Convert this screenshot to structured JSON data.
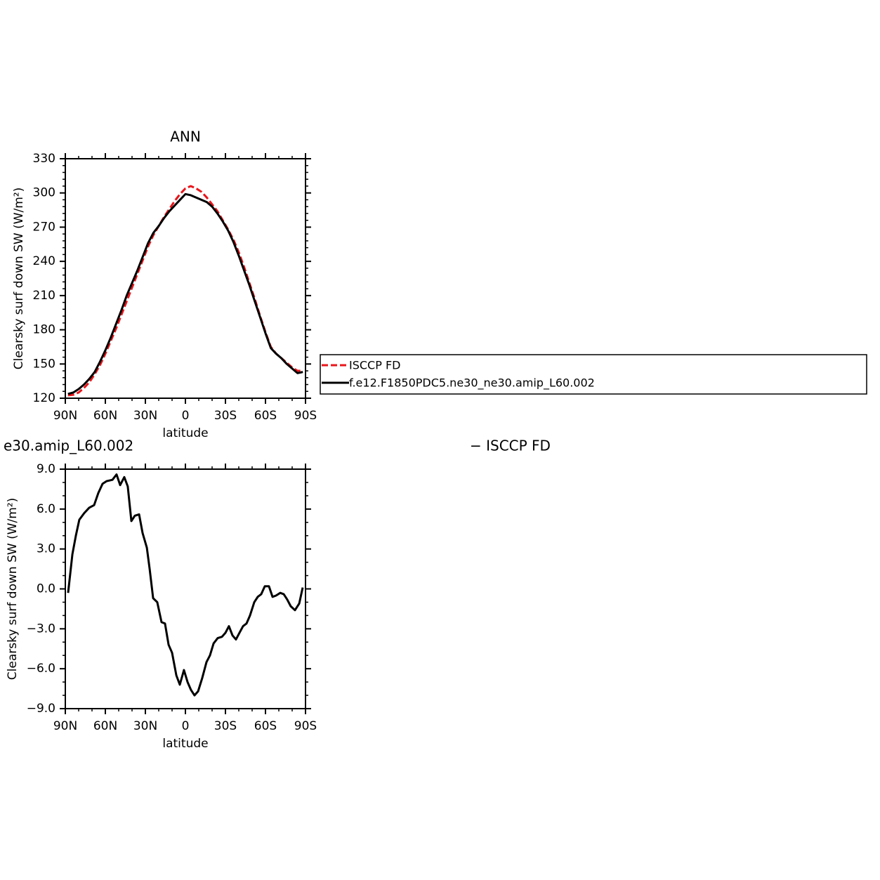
{
  "chart_data": [
    {
      "type": "line",
      "title": "ANN",
      "x_label": "latitude",
      "y_label": "Clearsky surf down SW (W/m²)",
      "x": [
        88,
        84,
        80,
        76,
        72,
        68,
        64,
        60,
        56,
        52,
        48,
        44,
        40,
        36,
        32,
        28,
        24,
        20,
        16,
        12,
        8,
        4,
        0,
        -4,
        -8,
        -12,
        -16,
        -20,
        -24,
        -28,
        -32,
        -36,
        -40,
        -44,
        -48,
        -52,
        -56,
        -60,
        -64,
        -68,
        -72,
        -76,
        -80,
        -84,
        -88
      ],
      "series": [
        {
          "name": "ISCCP FD",
          "color": "#e8161b",
          "dashed": true,
          "values": [
            122.5,
            123,
            125,
            129,
            134,
            141,
            149,
            159,
            170,
            181,
            193,
            205,
            217,
            229,
            241,
            253,
            263,
            271,
            279,
            286,
            293,
            299,
            304,
            306,
            304,
            301,
            296,
            290,
            284,
            276,
            268,
            259,
            248,
            235,
            221,
            207,
            192,
            178,
            165,
            159,
            155,
            151,
            147,
            144,
            144
          ]
        },
        {
          "name": "f.e12.F1850PDC5.ne30_ne30.amip_L60.002",
          "color": "#000000",
          "dashed": false,
          "values": [
            123.7,
            125,
            128,
            132,
            137,
            143,
            152,
            162,
            173,
            185,
            197,
            210,
            221,
            232,
            244,
            256,
            265,
            271,
            278,
            284,
            289,
            294,
            299,
            298,
            296,
            294,
            292,
            288,
            282,
            275,
            267,
            257,
            245,
            232,
            219,
            205,
            191,
            177,
            164,
            159,
            155,
            150,
            146,
            142,
            143
          ]
        }
      ],
      "xlim": [
        90,
        -90
      ],
      "xticks": [
        {
          "value": 90,
          "label": "90N"
        },
        {
          "value": 60,
          "label": "60N"
        },
        {
          "value": 30,
          "label": "30N"
        },
        0,
        {
          "value": -30,
          "label": "30S"
        },
        {
          "value": -60,
          "label": "60S"
        },
        {
          "value": -90,
          "label": "90S"
        }
      ],
      "ylim": [
        120,
        330
      ],
      "yticks": [
        120,
        150,
        180,
        210,
        240,
        270,
        300,
        330
      ],
      "legend": true
    },
    {
      "type": "line",
      "title_left": "e30.amip_L60.002",
      "title_right": "− ISCCP FD",
      "x_label": "latitude",
      "y_label": "Clearsky surf down SW (W/m²)",
      "x": [
        87.9,
        84.7,
        82.1,
        79.5,
        75.8,
        72.1,
        68.4,
        65.3,
        62.1,
        59,
        54.7,
        51.6,
        48.9,
        45.8,
        43.2,
        40.5,
        37.9,
        34.7,
        32.1,
        28.9,
        26.8,
        24.2,
        21.1,
        17.9,
        15.3,
        12.6,
        10,
        6.8,
        4.2,
        1.1,
        -1.6,
        -4.2,
        -6.8,
        -9.5,
        -12.6,
        -15.8,
        -18.4,
        -21.1,
        -24.2,
        -27.4,
        -30,
        -32.6,
        -35.3,
        -37.9,
        -40.5,
        -43.2,
        -45.8,
        -48.4,
        -51.6,
        -54.2,
        -56.8,
        -59.5,
        -62.6,
        -65.3,
        -67.9,
        -71.1,
        -73.7,
        -76.3,
        -78.9,
        -82.1,
        -85.3,
        -87.9
      ],
      "values": [
        -0.3,
        2.6,
        4.0,
        5.2,
        5.7,
        6.1,
        6.3,
        7.2,
        7.9,
        8.1,
        8.2,
        8.6,
        7.8,
        8.4,
        7.7,
        5.1,
        5.5,
        5.6,
        4.2,
        3.1,
        1.5,
        -0.7,
        -1.0,
        -2.5,
        -2.6,
        -4.2,
        -4.8,
        -6.5,
        -7.2,
        -6.1,
        -7.0,
        -7.6,
        -8.0,
        -7.7,
        -6.7,
        -5.5,
        -5.0,
        -4.1,
        -3.7,
        -3.6,
        -3.3,
        -2.8,
        -3.5,
        -3.8,
        -3.3,
        -2.8,
        -2.6,
        -2.0,
        -1.0,
        -0.6,
        -0.4,
        0.2,
        0.2,
        -0.6,
        -0.5,
        -0.3,
        -0.4,
        -0.8,
        -1.3,
        -1.6,
        -1.1,
        0.1
      ],
      "color": "#000000",
      "xlim": [
        90,
        -90
      ],
      "xticks": [
        {
          "value": 90,
          "label": "90N"
        },
        {
          "value": 60,
          "label": "60N"
        },
        {
          "value": 30,
          "label": "30N"
        },
        0,
        {
          "value": -30,
          "label": "30S"
        },
        {
          "value": -60,
          "label": "60S"
        },
        {
          "value": -90,
          "label": "90S"
        }
      ],
      "ylim": [
        -9,
        9
      ],
      "yticks": [
        {
          "value": -9,
          "label": "−9.0"
        },
        {
          "value": -6,
          "label": "−6.0"
        },
        {
          "value": -3,
          "label": "−3.0"
        },
        {
          "value": 0,
          "label": "0.0"
        },
        {
          "value": 3,
          "label": "3.0"
        },
        {
          "value": 6,
          "label": "6.0"
        },
        {
          "value": 9,
          "label": "9.0"
        }
      ]
    }
  ]
}
